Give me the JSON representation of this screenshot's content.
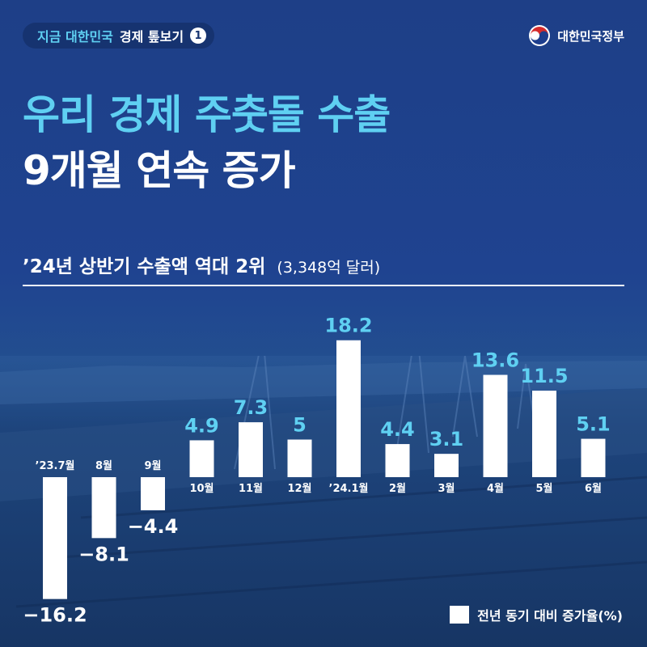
{
  "badge": {
    "accent": "지금 대한민국",
    "main": "경제 톺보기",
    "number": "1"
  },
  "gov": {
    "name": "대한민국정부"
  },
  "headline": {
    "line1": "우리 경제 주춧돌 수출",
    "line2": "9개월 연속 증가"
  },
  "subtitle": {
    "main": "’24년 상반기 수출액 역대 2위",
    "paren": "(3,348억 달러)"
  },
  "legend": {
    "label": "전년 동기 대비 증가율(%)"
  },
  "colors": {
    "accent": "#5fd0f2",
    "bar": "#ffffff",
    "background": "#1f4390",
    "value_label": "#5fd0f2",
    "negative_label": "#ffffff"
  },
  "chart_data": {
    "type": "bar",
    "categories": [
      "’23.7월",
      "8월",
      "9월",
      "10월",
      "11월",
      "12월",
      "’24.1월",
      "2월",
      "3월",
      "4월",
      "5월",
      "6월"
    ],
    "values": [
      -16.2,
      -8.1,
      -4.4,
      4.9,
      7.3,
      5,
      18.2,
      4.4,
      3.1,
      13.6,
      11.5,
      5.1
    ],
    "value_labels": [
      "−16.2",
      "−8.1",
      "−4.4",
      "4.9",
      "7.3",
      "5",
      "18.2",
      "4.4",
      "3.1",
      "13.6",
      "11.5",
      "5.1"
    ],
    "series": [
      {
        "name": "전년 동기 대비 증가율(%)",
        "values": [
          -16.2,
          -8.1,
          -4.4,
          4.9,
          7.3,
          5,
          18.2,
          4.4,
          3.1,
          13.6,
          11.5,
          5.1
        ]
      }
    ],
    "title": "’24년 상반기 수출액 역대 2위",
    "xlabel": "",
    "ylabel": "",
    "ylim": [
      -16.2,
      18.2
    ],
    "grid": false,
    "legend": "bottom-right"
  }
}
